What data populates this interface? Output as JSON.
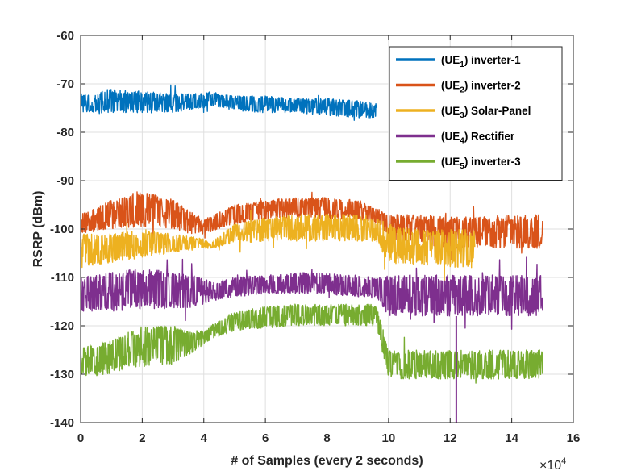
{
  "chart_data": {
    "type": "line",
    "title": "",
    "xlabel": "# of Samples (every 2 seconds)",
    "ylabel": "RSRP (dBm)",
    "x_multiplier": "×10",
    "x_multiplier_exponent": "4",
    "xlim": [
      0,
      16
    ],
    "ylim": [
      -140,
      -60
    ],
    "x_ticks": [
      "0",
      "2",
      "4",
      "6",
      "8",
      "10",
      "12",
      "14",
      "16"
    ],
    "y_ticks": [
      "-60",
      "-70",
      "-80",
      "-90",
      "-100",
      "-110",
      "-120",
      "-130",
      "-140"
    ],
    "grid": true,
    "legend_position": "top-right",
    "series": [
      {
        "name": "(UE1) inverter-1",
        "label_base": "(UE",
        "label_sub": "1",
        "label_rest": ") inverter-1",
        "color": "#0072BD",
        "x": [
          0,
          1,
          2,
          3,
          4,
          4.2,
          5,
          6,
          7,
          8,
          9,
          9.6
        ],
        "y_upper": [
          -72,
          -71,
          -71.5,
          -72,
          -72,
          -71.5,
          -72.5,
          -72.5,
          -73,
          -73,
          -73.5,
          -74
        ],
        "y_lower": [
          -76,
          -76,
          -76,
          -76,
          -75,
          -74.5,
          -75.5,
          -76,
          -76,
          -76.5,
          -77,
          -77
        ]
      },
      {
        "name": "(UE2) inverter-2",
        "label_base": "(UE",
        "label_sub": "2",
        "label_rest": ") inverter-2",
        "color": "#D95319",
        "x": [
          0,
          1,
          2,
          3,
          3.5,
          4,
          5,
          6,
          7,
          8,
          9,
          9.7,
          10,
          11,
          12,
          13,
          14,
          15
        ],
        "y_upper": [
          -97,
          -94,
          -92,
          -94,
          -96,
          -98,
          -95,
          -94,
          -93.5,
          -93.5,
          -94,
          -96,
          -97,
          -97,
          -97.5,
          -97.5,
          -97,
          -97
        ],
        "y_lower": [
          -101,
          -100,
          -99.5,
          -100,
          -101,
          -101,
          -99,
          -98,
          -97.5,
          -98,
          -98,
          -99,
          -102,
          -103,
          -104,
          -104,
          -104,
          -104
        ]
      },
      {
        "name": "(UE3) Solar-Panel",
        "label_base": "(UE",
        "label_sub": "3",
        "label_rest": ") Solar-Panel",
        "color": "#EDB120",
        "x": [
          0,
          1,
          2,
          3,
          4,
          4.2,
          5,
          6,
          7,
          8,
          9,
          9.6,
          10,
          11,
          12,
          12.8
        ],
        "y_upper": [
          -101,
          -101,
          -100,
          -101,
          -102,
          -103,
          -99,
          -97.5,
          -97,
          -97,
          -97,
          -97.5,
          -99,
          -100,
          -100,
          -100
        ],
        "y_lower": [
          -108,
          -107,
          -106,
          -105,
          -104,
          -104,
          -103,
          -102.5,
          -102.5,
          -102.5,
          -102.5,
          -102.5,
          -107,
          -107.5,
          -108,
          -108
        ]
      },
      {
        "name": "(UE4) Rectifier",
        "label_base": "(UE",
        "label_sub": "4",
        "label_rest": ") Rectifier",
        "color": "#7E2F8E",
        "x": [
          0,
          1,
          2,
          3,
          4,
          4.2,
          5,
          6,
          7,
          8,
          9,
          9.6,
          10,
          11,
          12,
          13,
          14,
          15
        ],
        "y_upper": [
          -110,
          -109,
          -108,
          -109,
          -110,
          -111,
          -110,
          -109.5,
          -109,
          -109,
          -109.5,
          -110,
          -109.5,
          -109.5,
          -109.5,
          -109.5,
          -109.5,
          -109.5
        ],
        "y_lower": [
          -117,
          -117,
          -116.5,
          -116.5,
          -116,
          -115,
          -114,
          -113.5,
          -113.5,
          -113.5,
          -114,
          -114,
          -118,
          -118,
          -118,
          -118,
          -118,
          -118
        ]
      },
      {
        "name": "(UE5) inverter-3",
        "label_base": "(UE",
        "label_sub": "5",
        "label_rest": ") inverter-3",
        "color": "#77AC30",
        "x": [
          0,
          1,
          2,
          3,
          3.5,
          4,
          4.2,
          5,
          6,
          7,
          8,
          9,
          9.6,
          10,
          11,
          12,
          13,
          14,
          15
        ],
        "y_upper": [
          -124,
          -123,
          -120,
          -120,
          -121,
          -121,
          -120,
          -117,
          -116,
          -115.5,
          -115.5,
          -115.5,
          -115.5,
          -125,
          -125,
          -125,
          -125,
          -125,
          -125
        ],
        "y_lower": [
          -131,
          -130,
          -128.5,
          -128,
          -126,
          -124,
          -123,
          -121,
          -120.5,
          -120,
          -120,
          -120,
          -120,
          -131,
          -131,
          -131,
          -131,
          -131,
          -131
        ]
      }
    ],
    "annotations": [
      {
        "series": "(UE4) Rectifier",
        "type": "outlier-dip",
        "x": 12.2,
        "y_min": -140
      }
    ]
  }
}
